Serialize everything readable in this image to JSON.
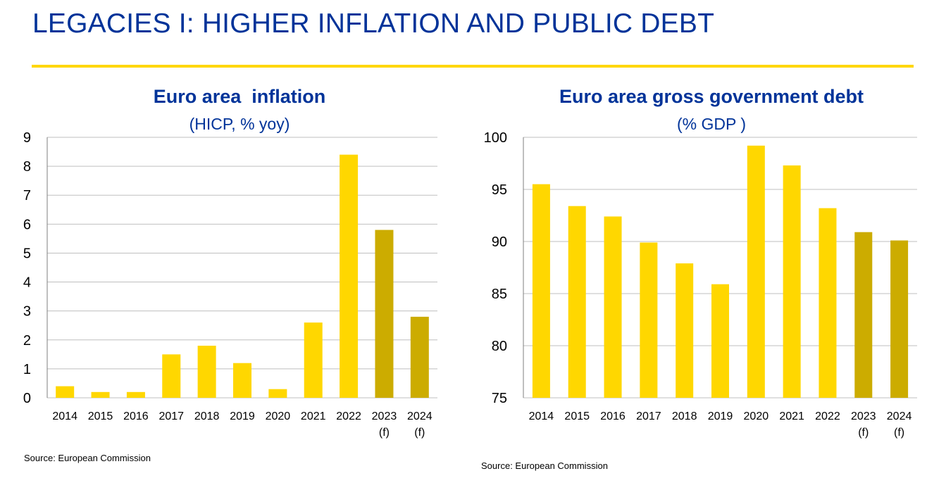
{
  "page": {
    "title": "LEGACIES I: HIGHER INFLATION AND PUBLIC DEBT"
  },
  "colors": {
    "title": "#003399",
    "rule": "#ffd700",
    "bar_actual": "#ffd700",
    "bar_forecast": "#ccac00",
    "grid": "#bfbfbf"
  },
  "chart_data": [
    {
      "type": "bar",
      "title": "Euro area  inflation",
      "subtitle": "(HICP, % yoy)",
      "categories": [
        "2014",
        "2015",
        "2016",
        "2017",
        "2018",
        "2019",
        "2020",
        "2021",
        "2022",
        "2023",
        "2024"
      ],
      "category_sublabels": [
        "",
        "",
        "",
        "",
        "",
        "",
        "",
        "",
        "",
        "(f)",
        "(f)"
      ],
      "forecast": [
        false,
        false,
        false,
        false,
        false,
        false,
        false,
        false,
        false,
        true,
        true
      ],
      "values": [
        0.4,
        0.2,
        0.2,
        1.5,
        1.8,
        1.2,
        0.3,
        2.6,
        8.4,
        5.8,
        2.8
      ],
      "ylim": [
        0,
        9
      ],
      "yticks": [
        0,
        1,
        2,
        3,
        4,
        5,
        6,
        7,
        8,
        9
      ],
      "grid": true,
      "legend": "none",
      "source": "Source: European Commission"
    },
    {
      "type": "bar",
      "title": "Euro area gross government debt",
      "subtitle": "(% GDP )",
      "categories": [
        "2014",
        "2015",
        "2016",
        "2017",
        "2018",
        "2019",
        "2020",
        "2021",
        "2022",
        "2023",
        "2024"
      ],
      "category_sublabels": [
        "",
        "",
        "",
        "",
        "",
        "",
        "",
        "",
        "",
        "(f)",
        "(f)"
      ],
      "forecast": [
        false,
        false,
        false,
        false,
        false,
        false,
        false,
        false,
        false,
        true,
        true
      ],
      "values": [
        95.5,
        93.4,
        92.4,
        89.9,
        87.9,
        85.9,
        99.2,
        97.3,
        93.2,
        90.9,
        90.1
      ],
      "ylim": [
        75,
        100
      ],
      "yticks": [
        75,
        80,
        85,
        90,
        95,
        100
      ],
      "grid": true,
      "legend": "none",
      "source": "Source: European Commission"
    }
  ]
}
